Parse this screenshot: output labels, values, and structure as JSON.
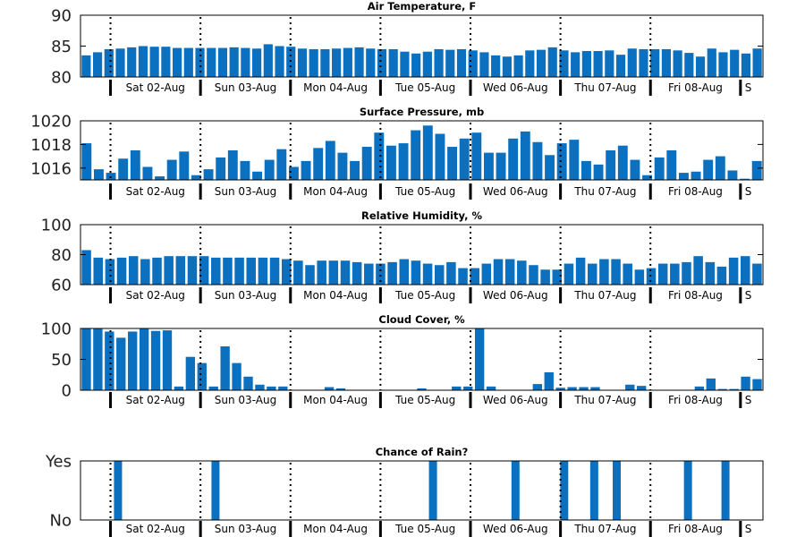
{
  "chart_data": [
    {
      "type": "bar",
      "title": "Air Temperature, F",
      "ylim": [
        80,
        90
      ],
      "yticks": [
        80,
        85,
        90
      ],
      "ytick_labels": [
        "80",
        "85",
        "90"
      ],
      "x_day_labels": [
        "Sat 02-Aug",
        "Sun 03-Aug",
        "Mon 04-Aug",
        "Tue 05-Aug",
        "Wed 06-Aug",
        "Thu 07-Aug",
        "Fri 08-Aug",
        "S"
      ],
      "values": [
        83.5,
        84,
        84.5,
        84.6,
        84.8,
        85,
        84.9,
        84.9,
        84.7,
        84.7,
        84.7,
        84.7,
        84.7,
        84.8,
        84.7,
        84.6,
        85.3,
        85,
        84.9,
        84.6,
        84.5,
        84.5,
        84.6,
        84.7,
        84.8,
        84.6,
        84.5,
        84.5,
        84.1,
        83.8,
        84.1,
        84.5,
        84.4,
        84.5,
        84.3,
        84,
        83.5,
        83.3,
        83.5,
        84.3,
        84.4,
        84.8,
        84.3,
        84,
        84.2,
        84.2,
        84.3,
        83.6,
        84.6,
        84.5,
        84.5,
        84.5,
        84.3,
        83.9,
        83.3,
        84.6,
        84,
        84.4,
        83.8,
        84.6
      ],
      "bar_color": "#0a70bf"
    },
    {
      "type": "bar",
      "title": "Surface Pressure, mb",
      "ylim": [
        1015,
        1020
      ],
      "yticks": [
        1016,
        1018,
        1020
      ],
      "ytick_labels": [
        "1016",
        "1018",
        "1020"
      ],
      "x_day_labels": [
        "Sat 02-Aug",
        "Sun 03-Aug",
        "Mon 04-Aug",
        "Tue 05-Aug",
        "Wed 06-Aug",
        "Thu 07-Aug",
        "Fri 08-Aug",
        "S"
      ],
      "values": [
        1018.1,
        1015.9,
        1015.6,
        1016.8,
        1017.5,
        1016.1,
        1015.3,
        1016.7,
        1017.4,
        1015.4,
        1015.9,
        1016.9,
        1017.5,
        1016.6,
        1015.7,
        1016.7,
        1017.6,
        1016.1,
        1016.6,
        1017.7,
        1018.3,
        1017.3,
        1016.6,
        1017.8,
        1019,
        1017.9,
        1018.1,
        1019.2,
        1019.6,
        1018.9,
        1017.8,
        1018.5,
        1019,
        1017.3,
        1017.3,
        1018.5,
        1019.1,
        1018.2,
        1017.1,
        1018.1,
        1018.4,
        1016.6,
        1016.3,
        1017.5,
        1017.9,
        1016.7,
        1015.4,
        1016.9,
        1017.5,
        1015.6,
        1015.7,
        1016.7,
        1017,
        1015.8,
        1015.1,
        1016.6
      ],
      "bar_color": "#0a70bf"
    },
    {
      "type": "bar",
      "title": "Relative Humidity, %",
      "ylim": [
        60,
        100
      ],
      "yticks": [
        60,
        80,
        100
      ],
      "ytick_labels": [
        "60",
        "80",
        "100"
      ],
      "x_day_labels": [
        "Sat 02-Aug",
        "Sun 03-Aug",
        "Mon 04-Aug",
        "Tue 05-Aug",
        "Wed 06-Aug",
        "Thu 07-Aug",
        "Fri 08-Aug",
        "S"
      ],
      "values": [
        83,
        78,
        77,
        78,
        79,
        77,
        78,
        79,
        79,
        79,
        79,
        78,
        78,
        78,
        78,
        78,
        78,
        77,
        76,
        73,
        76,
        76,
        76,
        75,
        74,
        74,
        75,
        77,
        76,
        74,
        73,
        75,
        71,
        71,
        74,
        77,
        77,
        76,
        73,
        70,
        70,
        74,
        78,
        74,
        77,
        77,
        74,
        70,
        71,
        74,
        74,
        75,
        79,
        75,
        72,
        78,
        79,
        74
      ],
      "bar_color": "#0a70bf"
    },
    {
      "type": "bar",
      "title": "Cloud Cover, %",
      "ylim": [
        0,
        100
      ],
      "yticks": [
        0,
        50,
        100
      ],
      "ytick_labels": [
        "0",
        "50",
        "100"
      ],
      "x_day_labels": [
        "Sat 02-Aug",
        "Sun 03-Aug",
        "Mon 04-Aug",
        "Tue 05-Aug",
        "Wed 06-Aug",
        "Thu 07-Aug",
        "Fri 08-Aug",
        "S"
      ],
      "values": [
        100,
        100,
        95,
        85,
        95,
        100,
        96,
        97,
        6,
        54,
        44,
        6,
        71,
        44,
        22,
        9,
        6,
        6,
        0,
        0,
        0,
        5,
        3,
        0,
        0,
        0,
        0,
        0,
        0,
        3,
        0,
        0,
        6,
        6,
        100,
        6,
        0,
        0,
        0,
        10,
        29,
        4,
        5,
        5,
        5,
        0,
        0,
        9,
        7,
        0,
        0,
        0,
        0,
        6,
        19,
        2,
        2,
        22,
        18
      ],
      "bar_color": "#0a70bf"
    },
    {
      "type": "bar",
      "title": "Chance of Rain?",
      "ylim": [
        0,
        1
      ],
      "yticks": [
        0,
        1
      ],
      "ytick_labels": [
        "No",
        "Yes"
      ],
      "x_day_labels": [
        "Sat 02-Aug",
        "Sun 03-Aug",
        "Mon 04-Aug",
        "Tue 05-Aug",
        "Wed 06-Aug",
        "Thu 07-Aug",
        "Fri 08-Aug",
        "S"
      ],
      "rain_hours": [
        10,
        36,
        94,
        116,
        129,
        137,
        143,
        162,
        172
      ],
      "bar_color": "#0a70bf"
    }
  ]
}
